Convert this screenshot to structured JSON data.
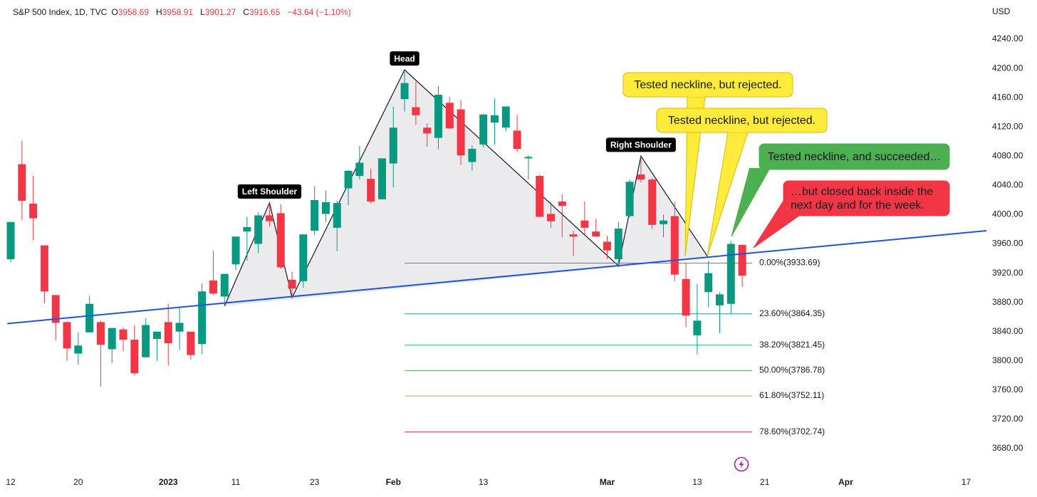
{
  "chart_data": {
    "type": "candlestick",
    "header": {
      "symbol": "S&P 500 Index, 1D, TVC",
      "ohlc": [
        {
          "key": "O",
          "value": 3958.69
        },
        {
          "key": "H",
          "value": 3958.91
        },
        {
          "key": "L",
          "value": 3901.27
        },
        {
          "key": "C",
          "value": 3916.65
        }
      ],
      "change": "−43.64 (−1.10%)"
    },
    "currency": "USD",
    "x": [
      0,
      1,
      2,
      3,
      4,
      5,
      6,
      7,
      8,
      9,
      10,
      11,
      12,
      13,
      14,
      15,
      16,
      17,
      18,
      19,
      20,
      21,
      22,
      23,
      24,
      25,
      26,
      27,
      28,
      29,
      30,
      31,
      32,
      33,
      34,
      35,
      36,
      37,
      38,
      39,
      40,
      41,
      42,
      43,
      44,
      45,
      46,
      47,
      48,
      49,
      50,
      51,
      52,
      53,
      54,
      55,
      56,
      57,
      58,
      59,
      60,
      61,
      62,
      63,
      64,
      65
    ],
    "open": [
      3939,
      4069,
      4015,
      3958,
      3890,
      3853,
      3810,
      3839,
      3853,
      3816,
      3843,
      3829,
      3805,
      3830,
      3853,
      3840,
      3840,
      3823,
      3910,
      3888,
      3932,
      3977,
      3960,
      3999,
      4002,
      3911,
      3909,
      3978,
      4001,
      3982,
      4036,
      4053,
      4049,
      4021,
      4070,
      4158,
      4147,
      4119,
      4105,
      4153,
      4144,
      4072,
      4096,
      4126,
      4119,
      4115,
      4077,
      4053,
      4001,
      4018,
      3973,
      3992,
      3977,
      3963,
      3939,
      3998,
      4055,
      4048,
      3987,
      3998,
      3912,
      3835,
      3894,
      3876,
      3878,
      3958.69
    ],
    "high": [
      3990,
      4101,
      4053,
      3958,
      3890,
      3854,
      3839,
      3889,
      3855,
      3845,
      3846,
      3849,
      3858,
      3839,
      3878,
      3873,
      3840,
      3906,
      3951,
      3919,
      3970,
      3997,
      4003,
      4015,
      4014,
      3922,
      3973,
      4039,
      4033,
      4019,
      4061,
      4094,
      4063,
      4077,
      4148,
      4195,
      4182,
      4125,
      4176,
      4161,
      4157,
      4095,
      4138,
      4159,
      4148,
      4136,
      4081,
      4054,
      4017,
      4028,
      3978,
      4018,
      3994,
      3971,
      3990,
      4048,
      4078,
      4050,
      4000,
      4017,
      3934,
      3905,
      3937,
      3894,
      3964,
      3958.91
    ],
    "low": [
      3935,
      3993,
      3965,
      3879,
      3828,
      3800,
      3795,
      3839,
      3765,
      3797,
      3813,
      3780,
      3805,
      3800,
      3794,
      3815,
      3802,
      3809,
      3890,
      3877,
      3924,
      3937,
      3947,
      3984,
      3926,
      3885,
      3900,
      3972,
      3990,
      3950,
      4013,
      4048,
      4015,
      4021,
      4037,
      4141,
      4123,
      4093,
      4089,
      4117,
      4068,
      4060,
      4092,
      4096,
      4114,
      4086,
      4048,
      3997,
      3982,
      3969,
      3943,
      3973,
      3970,
      3940,
      3928,
      3996,
      4044,
      3980,
      3969,
      3909,
      3846,
      3809,
      3873,
      3838,
      3864,
      3901.27
    ],
    "close": [
      3990,
      4019,
      3995,
      3895,
      3852,
      3817,
      3821,
      3878,
      3822,
      3845,
      3829,
      3783,
      3849,
      3840,
      3824,
      3852,
      3808,
      3895,
      3892,
      3919,
      3970,
      3983,
      3999,
      3991,
      3928,
      3899,
      3973,
      4020,
      4017,
      4016,
      4060,
      4071,
      4018,
      4077,
      4119,
      4180,
      4136,
      4111,
      4164,
      4118,
      4081,
      4090,
      4137,
      4136,
      4148,
      4090,
      4079,
      3997,
      3991,
      4012,
      3970,
      3982,
      3970,
      3951,
      3981,
      4045,
      4048,
      3986,
      3992,
      3918,
      3862,
      3855,
      3920,
      3891,
      3960,
      3916.65
    ],
    "up_color": "#089981",
    "down_color": "#f23645",
    "xlim": [
      -0.95,
      86.7
    ],
    "ylim": [
      3650.8,
      4293.6
    ],
    "xticks": [
      {
        "value": 0,
        "label": "12"
      },
      {
        "value": 6,
        "label": "20"
      },
      {
        "value": 14,
        "label": "2023",
        "major": true
      },
      {
        "value": 20,
        "label": "11"
      },
      {
        "value": 27,
        "label": "23"
      },
      {
        "value": 34,
        "label": "Feb",
        "major": true
      },
      {
        "value": 42,
        "label": "13"
      },
      {
        "value": 53,
        "label": "Mar",
        "major": true
      },
      {
        "value": 61,
        "label": "13"
      },
      {
        "value": 67,
        "label": "21"
      },
      {
        "value": 74.2,
        "label": "Apr",
        "major": true
      },
      {
        "value": 84.9,
        "label": "17"
      }
    ],
    "yticks": [
      {
        "value": 3680,
        "label": "3680.00"
      },
      {
        "value": 3720,
        "label": "3720.00"
      },
      {
        "value": 3760,
        "label": "3760.00"
      },
      {
        "value": 3800,
        "label": "3800.00"
      },
      {
        "value": 3840,
        "label": "3840.00"
      },
      {
        "value": 3880,
        "label": "3880.00"
      },
      {
        "value": 3920,
        "label": "3920.00"
      },
      {
        "value": 3960,
        "label": "3960.00"
      },
      {
        "value": 4000,
        "label": "4000.00"
      },
      {
        "value": 4040,
        "label": "4040.00"
      },
      {
        "value": 4080,
        "label": "4080.00"
      },
      {
        "value": 4120,
        "label": "4120.00"
      },
      {
        "value": 4160,
        "label": "4160.00"
      },
      {
        "value": 4200,
        "label": "4200.00"
      },
      {
        "value": 4240,
        "label": "4240.00"
      }
    ],
    "grid": false,
    "neckline": {
      "x": [
        -0.3,
        86.7
      ],
      "y": [
        3851,
        3978
      ],
      "color": "#1e53e5"
    },
    "pattern": {
      "x": [
        19,
        23,
        25,
        35,
        54,
        56,
        62
      ],
      "y": [
        3875,
        4016,
        3886.5,
        4198,
        3930,
        4080,
        3941
      ],
      "labels": [
        "Left Shoulder",
        "Head",
        "Right Shoulder"
      ]
    },
    "fib_levels": [
      {
        "value": 3933.69,
        "label": "0.00%(3933.69)",
        "color": "#787b86"
      },
      {
        "value": 3864.35,
        "label": "23.60%(3864.35)",
        "color": "#2196a6"
      },
      {
        "value": 3821.45,
        "label": "38.20%(3821.45)",
        "color": "#22ab94"
      },
      {
        "value": 3786.78,
        "label": "50.00%(3786.78)",
        "color": "#4caf50"
      },
      {
        "value": 3752.11,
        "label": "61.80%(3752.11)",
        "color": "#8bc34a"
      },
      {
        "value": 3702.74,
        "label": "78.60%(3702.74)",
        "color": "#f23645"
      }
    ],
    "callouts": [
      {
        "lines": [
          "Tested neckline, but rejected."
        ],
        "color": "#ffeb3b",
        "text_color": "#131722"
      },
      {
        "lines": [
          "Tested neckline, but rejected."
        ],
        "color": "#ffeb3b",
        "text_color": "#131722"
      },
      {
        "lines": [
          "Tested neckline, and succeeded…"
        ],
        "color": "#4caf50",
        "text_color": "#ffffff"
      },
      {
        "lines": [
          "…but closed back inside the",
          "next day and for the week."
        ],
        "color": "#f23645",
        "text_color": "#ffffff"
      }
    ]
  }
}
